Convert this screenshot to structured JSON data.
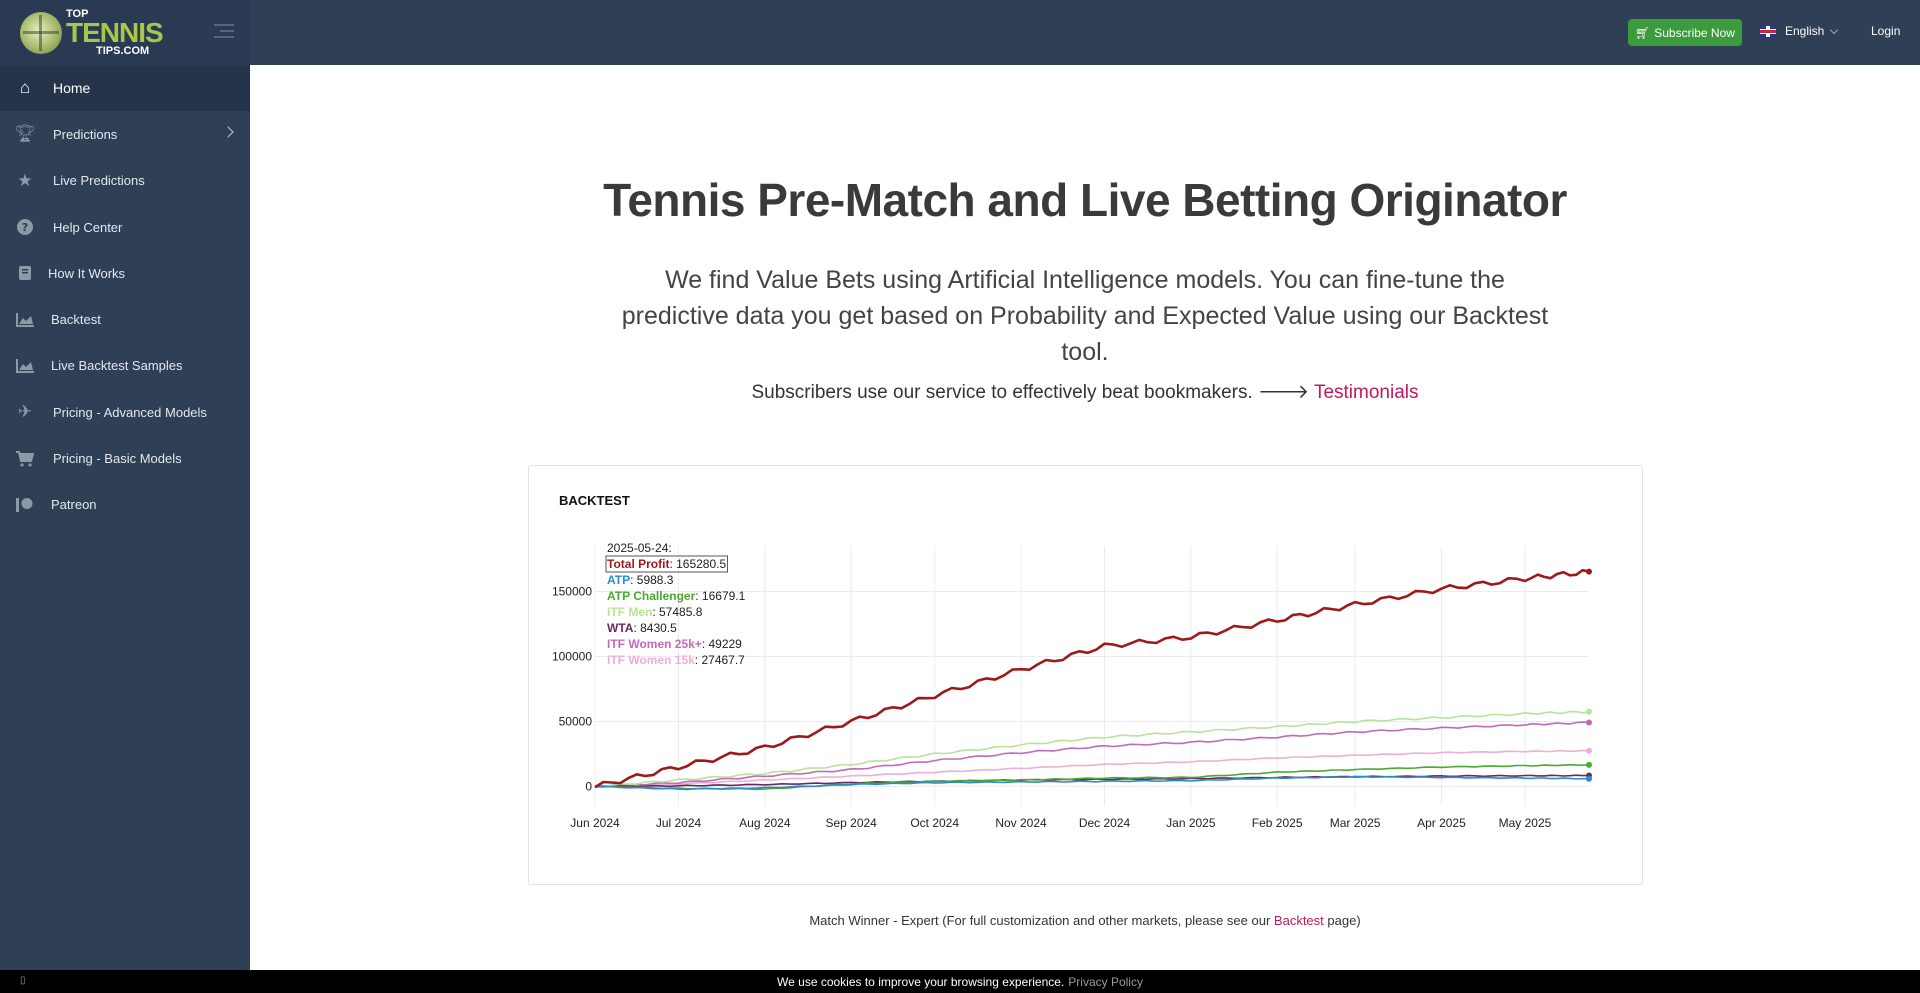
{
  "brand": {
    "top": "TOP",
    "main": "TENNIS",
    "sub": "TIPS.COM"
  },
  "topbar": {
    "subscribe_label": "Subscribe Now",
    "language": "English",
    "login_label": "Login"
  },
  "sidebar": {
    "items": [
      {
        "label": "Home",
        "icon": "home-icon"
      },
      {
        "label": "Predictions",
        "icon": "trophy-icon"
      },
      {
        "label": "Live Predictions",
        "icon": "star-icon"
      },
      {
        "label": "Help Center",
        "icon": "question-icon"
      },
      {
        "label": "How It Works",
        "icon": "book-icon"
      },
      {
        "label": "Backtest",
        "icon": "area-chart-icon"
      },
      {
        "label": "Live Backtest Samples",
        "icon": "area-chart-icon"
      },
      {
        "label": "Pricing - Advanced Models",
        "icon": "plane-icon"
      },
      {
        "label": "Pricing - Basic Models",
        "icon": "cart-icon"
      },
      {
        "label": "Patreon",
        "icon": "patreon-icon"
      }
    ]
  },
  "hero": {
    "title": "Tennis Pre-Match and Live Betting Originator",
    "lead": "We find Value Bets using Artificial Intelligence models. You can fine-tune the predictive data you get based on Probability and Expected Value using our Backtest tool.",
    "subscribers_text": "Subscribers use our service to effectively beat bookmakers.",
    "testimonials_link": "Testimonials"
  },
  "backtest_card": {
    "title": "BACKTEST"
  },
  "chart_data": {
    "type": "line",
    "x_tick_labels": [
      "Jun 2024",
      "Jul 2024",
      "Aug 2024",
      "Sep 2024",
      "Oct 2024",
      "Nov 2024",
      "Dec 2024",
      "Jan 2025",
      "Feb 2025",
      "Mar 2025",
      "Apr 2025",
      "May 2025"
    ],
    "y_tick_labels": [
      "0",
      "50000",
      "100000",
      "150000"
    ],
    "ylim": [
      -15000,
      185000
    ],
    "x": [
      "2024-06-01",
      "2024-07-01",
      "2024-08-01",
      "2024-09-01",
      "2024-10-01",
      "2024-11-01",
      "2024-12-01",
      "2025-01-01",
      "2025-02-01",
      "2025-03-01",
      "2025-04-01",
      "2025-05-01",
      "2025-05-24"
    ],
    "series": [
      {
        "name": "Total Profit",
        "color": "#9e1a1a",
        "values": [
          0,
          15000,
          30000,
          50000,
          70000,
          90000,
          108000,
          115000,
          128000,
          140000,
          152000,
          160000,
          165280.5
        ]
      },
      {
        "name": "ATP",
        "color": "#2b8ccb",
        "values": [
          0,
          -2000,
          -1000,
          1500,
          3000,
          3500,
          4000,
          4500,
          6500,
          7500,
          7000,
          6500,
          5988.3
        ]
      },
      {
        "name": "ATP Challenger",
        "color": "#4ca830",
        "values": [
          0,
          -1500,
          -2000,
          2000,
          4000,
          5000,
          6500,
          7000,
          11000,
          13000,
          15000,
          16000,
          16679.1
        ]
      },
      {
        "name": "ITF Men",
        "color": "#b7e39a",
        "values": [
          0,
          5000,
          10000,
          17000,
          25000,
          32000,
          38000,
          42000,
          46000,
          50000,
          53000,
          56000,
          57485.8
        ]
      },
      {
        "name": "WTA",
        "color": "#6b2a5e",
        "values": [
          0,
          500,
          1500,
          3000,
          4000,
          5000,
          5500,
          6000,
          7000,
          7500,
          8000,
          8300,
          8430.5
        ]
      },
      {
        "name": "ITF Women 25k+",
        "color": "#c06bb8",
        "values": [
          0,
          3000,
          8000,
          13000,
          20000,
          26000,
          31000,
          34000,
          38000,
          42000,
          45000,
          47500,
          49229
        ]
      },
      {
        "name": "ITF Women 15k",
        "color": "#eab0d7",
        "values": [
          0,
          2000,
          5000,
          8000,
          11000,
          14000,
          17000,
          19000,
          22000,
          24000,
          26000,
          27000,
          27467.7
        ]
      }
    ],
    "tooltip": {
      "date": "2025-05-24:"
    }
  },
  "caption": {
    "before": "Match Winner - Expert (For full customization and other markets, please see our",
    "link": "Backtest",
    "after": "page)"
  },
  "cookie": {
    "text": "We use cookies to improve your browsing experience.",
    "link": "Privacy Policy"
  }
}
